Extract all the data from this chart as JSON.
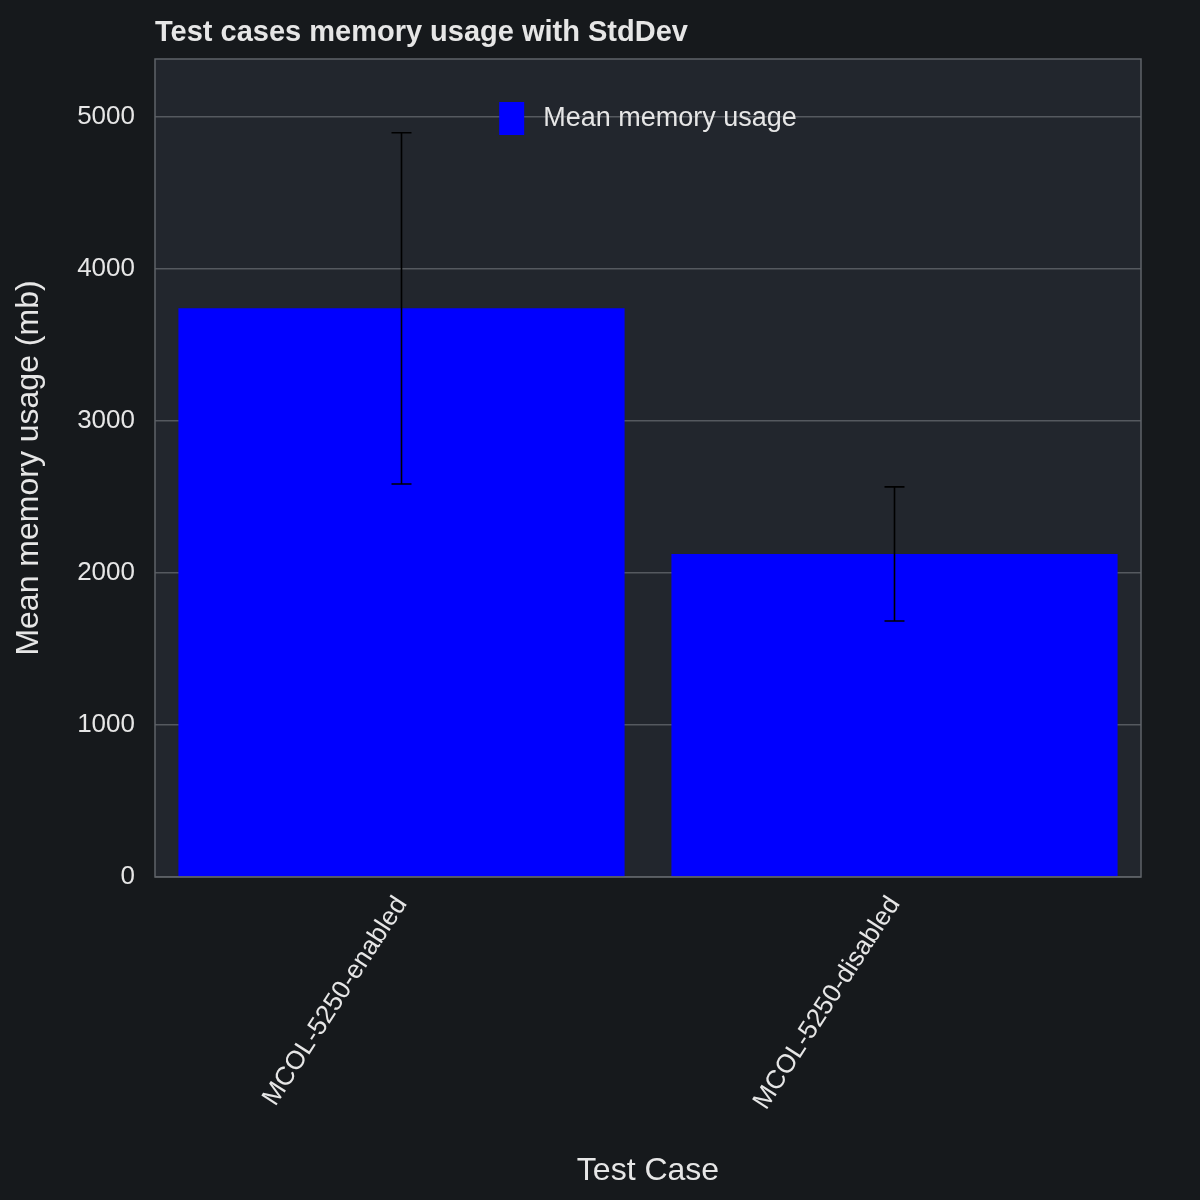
{
  "chart_data": {
    "type": "bar",
    "title": "Test cases memory usage with StdDev",
    "xlabel": "Test Case",
    "ylabel": "Mean memory usage (mb)",
    "categories": [
      "MCOL-5250-enabled",
      "MCOL-5250-disabled"
    ],
    "series": [
      {
        "name": "Mean memory usage",
        "color": "#0000ff",
        "values": [
          3740,
          2125
        ],
        "errors": [
          1155,
          441
        ]
      }
    ],
    "ylim": [
      0,
      5380
    ],
    "yticks": [
      0,
      1000,
      2000,
      3000,
      4000,
      5000
    ],
    "grid": "y",
    "legend": "top"
  }
}
